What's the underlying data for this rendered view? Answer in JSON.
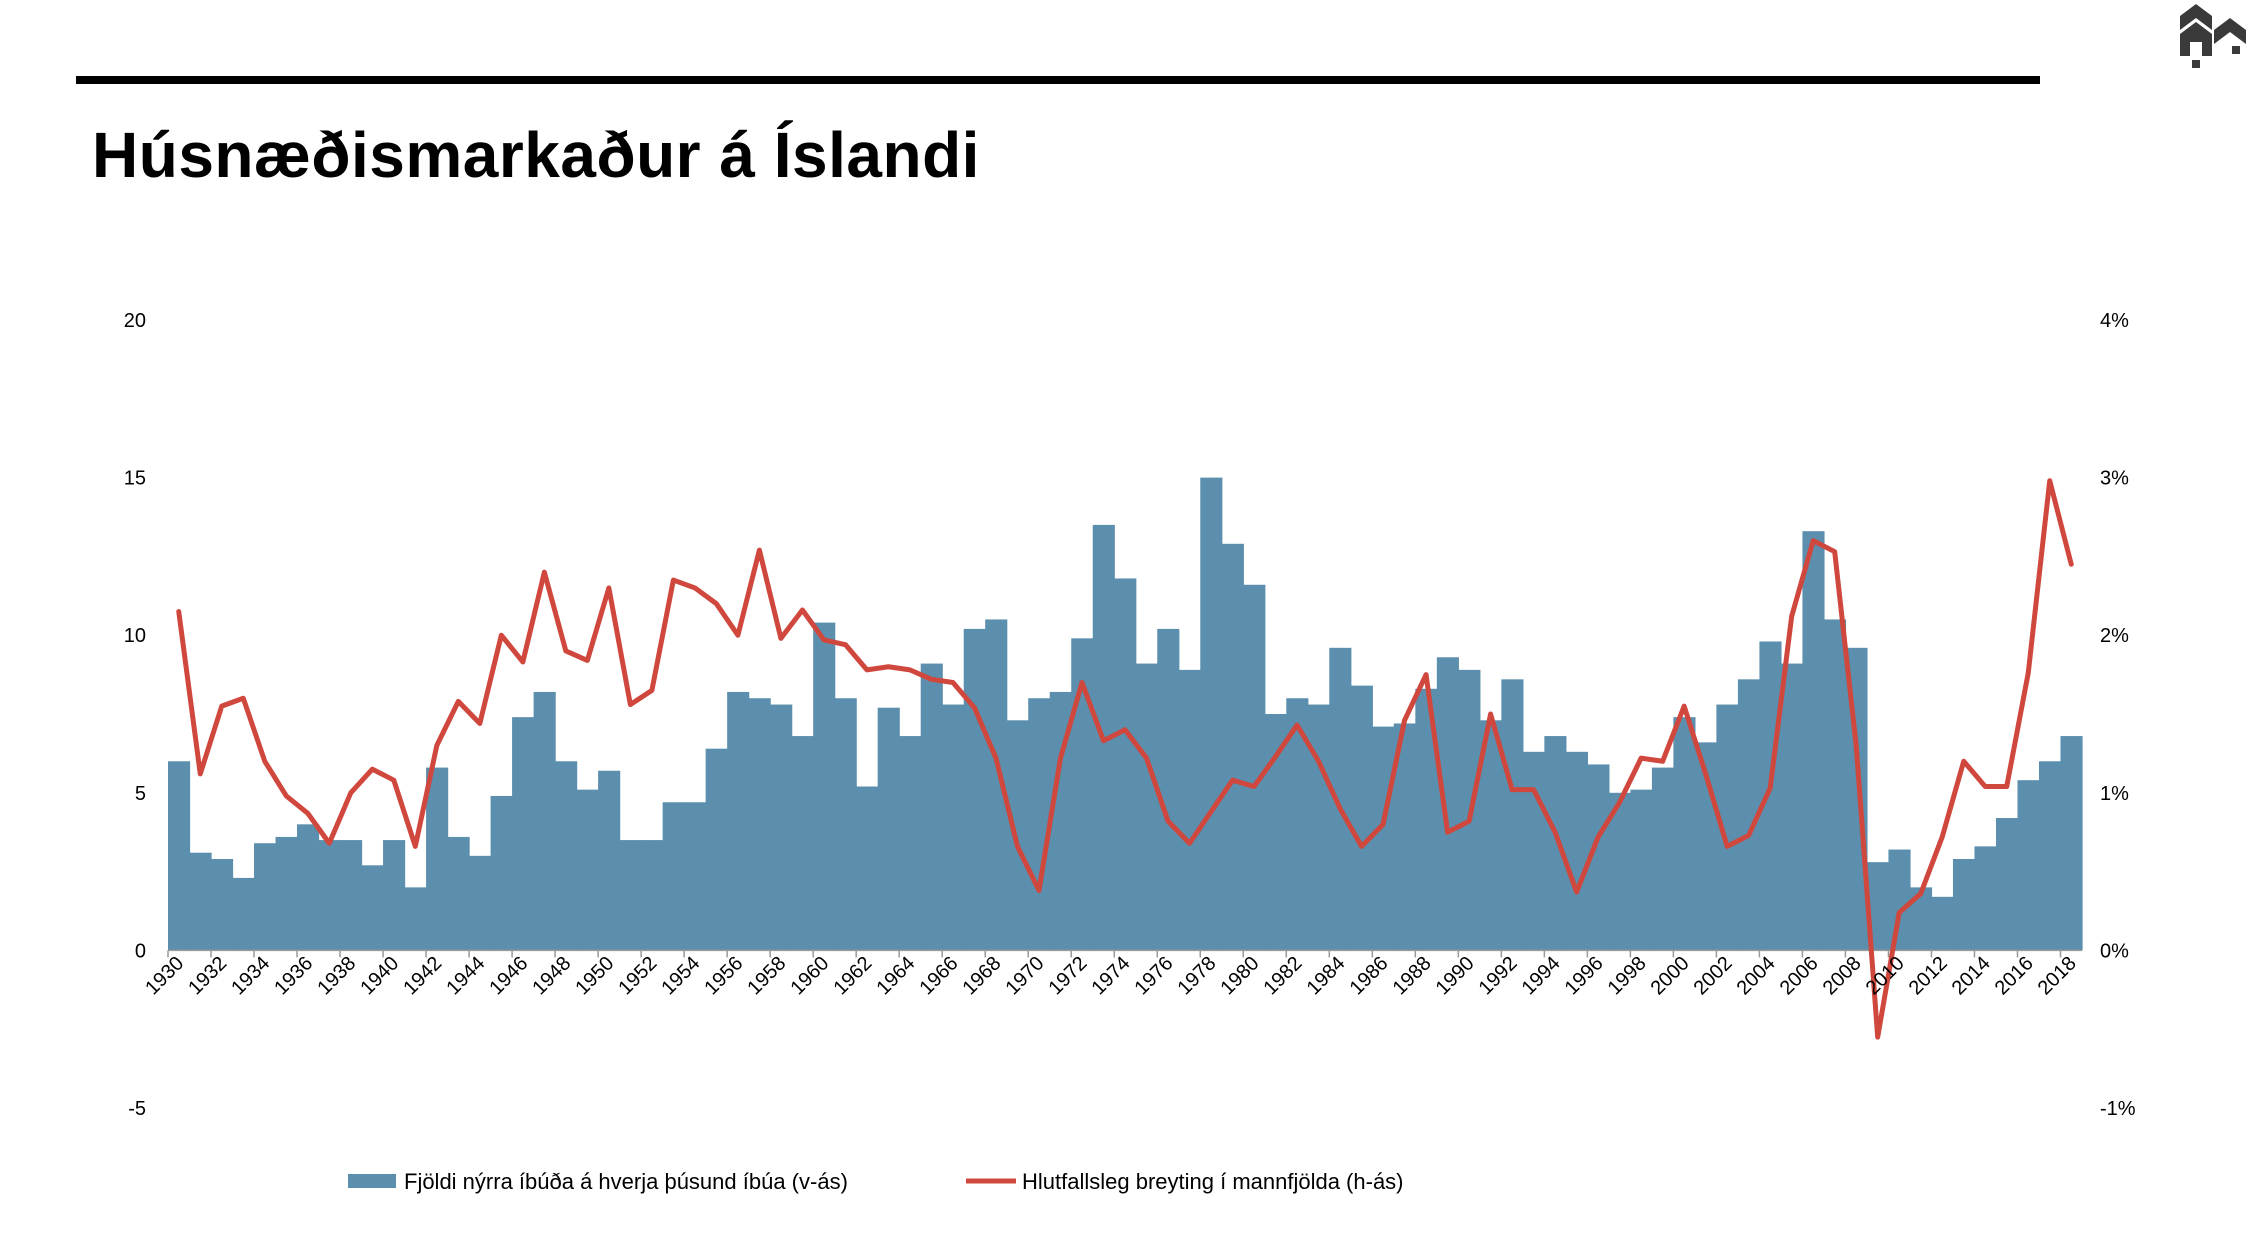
{
  "title": "Húsnæðismarkaður á Íslandi",
  "colors": {
    "bars": "#5b8fad",
    "line": "#d0473e",
    "axis": "#999999",
    "rule": "#000000"
  },
  "chart_data": {
    "type": "bar",
    "x": [
      1930,
      1931,
      1932,
      1933,
      1934,
      1935,
      1936,
      1937,
      1938,
      1939,
      1940,
      1941,
      1942,
      1943,
      1944,
      1945,
      1946,
      1947,
      1948,
      1949,
      1950,
      1951,
      1952,
      1953,
      1954,
      1955,
      1956,
      1957,
      1958,
      1959,
      1960,
      1961,
      1962,
      1963,
      1964,
      1965,
      1966,
      1967,
      1968,
      1969,
      1970,
      1971,
      1972,
      1973,
      1974,
      1975,
      1976,
      1977,
      1978,
      1979,
      1980,
      1981,
      1982,
      1983,
      1984,
      1985,
      1986,
      1987,
      1988,
      1989,
      1990,
      1991,
      1992,
      1993,
      1994,
      1995,
      1996,
      1997,
      1998,
      1999,
      2000,
      2001,
      2002,
      2003,
      2004,
      2005,
      2006,
      2007,
      2008,
      2009,
      2010,
      2011,
      2012,
      2013,
      2014,
      2015,
      2016,
      2017,
      2018
    ],
    "x_tick_labels": [
      "1930",
      "1932",
      "1934",
      "1936",
      "1938",
      "1940",
      "1942",
      "1944",
      "1946",
      "1948",
      "1950",
      "1952",
      "1954",
      "1956",
      "1958",
      "1960",
      "1962",
      "1964",
      "1966",
      "1968",
      "1970",
      "1972",
      "1974",
      "1976",
      "1978",
      "1980",
      "1982",
      "1984",
      "1986",
      "1988",
      "1990",
      "1992",
      "1994",
      "1996",
      "1998",
      "2000",
      "2002",
      "2004",
      "2006",
      "2008",
      "2010",
      "2012",
      "2014",
      "2016",
      "2018"
    ],
    "y_left_ticks": [
      "20",
      "15",
      "10",
      "5",
      "0",
      "-5"
    ],
    "y_right_ticks": [
      "4%",
      "3%",
      "2%",
      "1%",
      "0%",
      "-1%"
    ],
    "ylim_left": [
      -5,
      20
    ],
    "ylim_right": [
      -1,
      4
    ],
    "series": [
      {
        "name": "Fjöldi nýrra íbúða á hverja þúsund íbúa (v-ás)",
        "type": "bar",
        "axis": "left",
        "values": [
          6.0,
          3.1,
          2.9,
          2.3,
          3.4,
          3.6,
          4.0,
          3.5,
          3.5,
          2.7,
          3.5,
          2.0,
          5.8,
          3.6,
          3.0,
          4.9,
          7.4,
          8.2,
          6.0,
          5.1,
          5.7,
          3.5,
          3.5,
          4.7,
          4.7,
          6.4,
          8.2,
          8.0,
          7.8,
          6.8,
          10.4,
          8.0,
          5.2,
          7.7,
          6.8,
          9.1,
          7.8,
          10.2,
          10.5,
          7.3,
          8.0,
          8.2,
          9.9,
          13.5,
          11.8,
          9.1,
          10.2,
          8.9,
          15.0,
          12.9,
          11.6,
          7.5,
          8.0,
          7.8,
          9.6,
          8.4,
          7.1,
          7.2,
          8.3,
          9.3,
          8.9,
          7.3,
          8.6,
          6.3,
          6.8,
          6.3,
          5.9,
          5.0,
          5.1,
          5.8,
          7.4,
          6.6,
          7.8,
          8.6,
          9.8,
          9.1,
          13.3,
          10.5,
          9.6,
          2.8,
          3.2,
          2.0,
          1.7,
          2.9,
          3.3,
          4.2,
          5.4,
          6.0,
          6.8
        ]
      },
      {
        "name": "Hlutfallsleg breyting í mannfjölda (h-ás)",
        "type": "line",
        "axis": "right",
        "values": [
          2.15,
          1.12,
          1.55,
          1.6,
          1.2,
          0.98,
          0.87,
          0.68,
          1.0,
          1.15,
          1.08,
          0.66,
          1.3,
          1.58,
          1.44,
          2.0,
          1.83,
          2.4,
          1.9,
          1.84,
          2.3,
          1.56,
          1.65,
          2.35,
          2.3,
          2.2,
          2.0,
          2.54,
          1.98,
          2.16,
          1.97,
          1.94,
          1.78,
          1.8,
          1.78,
          1.72,
          1.7,
          1.54,
          1.22,
          0.66,
          0.38,
          1.22,
          1.7,
          1.33,
          1.4,
          1.22,
          0.82,
          0.68,
          0.88,
          1.08,
          1.04,
          1.23,
          1.43,
          1.2,
          0.9,
          0.66,
          0.8,
          1.46,
          1.75,
          0.75,
          0.82,
          1.5,
          1.02,
          1.02,
          0.75,
          0.37,
          0.72,
          0.94,
          1.22,
          1.2,
          1.55,
          1.12,
          0.66,
          0.73,
          1.03,
          2.12,
          2.6,
          2.53,
          1.3,
          -0.55,
          0.24,
          0.36,
          0.72,
          1.2,
          1.04,
          1.04,
          1.76,
          2.98,
          2.45
        ]
      }
    ],
    "legend_position": "bottom",
    "grid": false
  }
}
